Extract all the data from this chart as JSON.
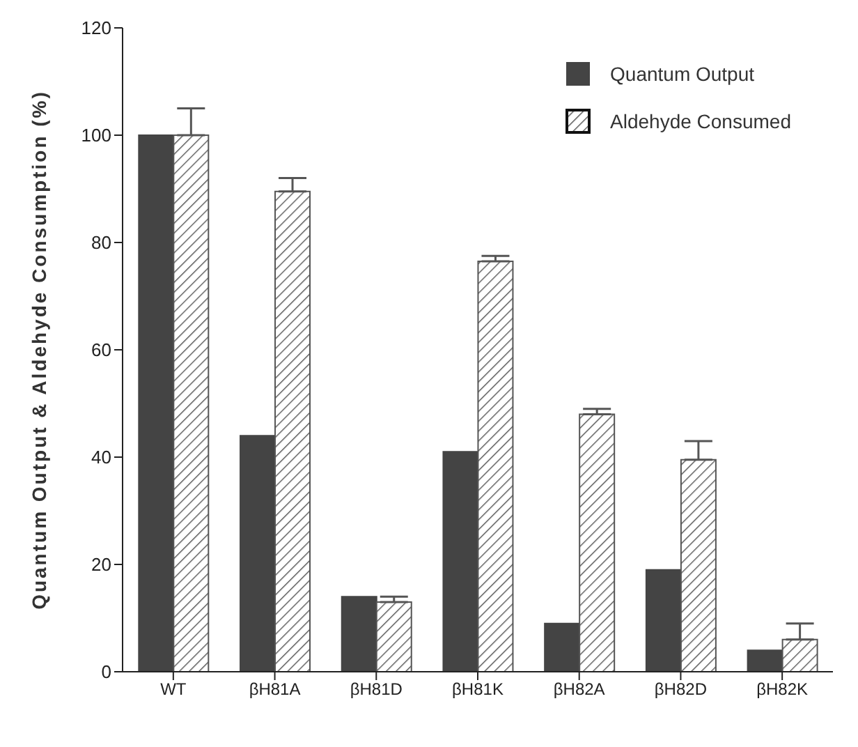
{
  "chart_data": {
    "type": "bar",
    "ylabel": "Quantum Output & Aldehyde Consumption (%)",
    "categories": [
      "WT",
      "βH81A",
      "βH81D",
      "βH81K",
      "βH82A",
      "βH82D",
      "βH82K"
    ],
    "series": [
      {
        "name": "Quantum Output",
        "color": "#444444",
        "values": [
          100,
          44,
          14,
          41,
          9,
          19,
          4
        ]
      },
      {
        "name": "Aldehyde Consumed",
        "color": "#555555",
        "values": [
          100,
          89.5,
          13,
          76.5,
          48,
          39.5,
          6
        ],
        "errors": [
          [
            100,
            105
          ],
          [
            89.5,
            92
          ],
          [
            13,
            14
          ],
          [
            76.5,
            77.5
          ],
          [
            48,
            49
          ],
          [
            39.5,
            43
          ],
          [
            6,
            9
          ]
        ]
      }
    ],
    "ylim": [
      0,
      120
    ],
    "yticks": [
      0,
      20,
      40,
      60,
      80,
      100,
      120
    ],
    "grid": false,
    "legend": "top right"
  }
}
